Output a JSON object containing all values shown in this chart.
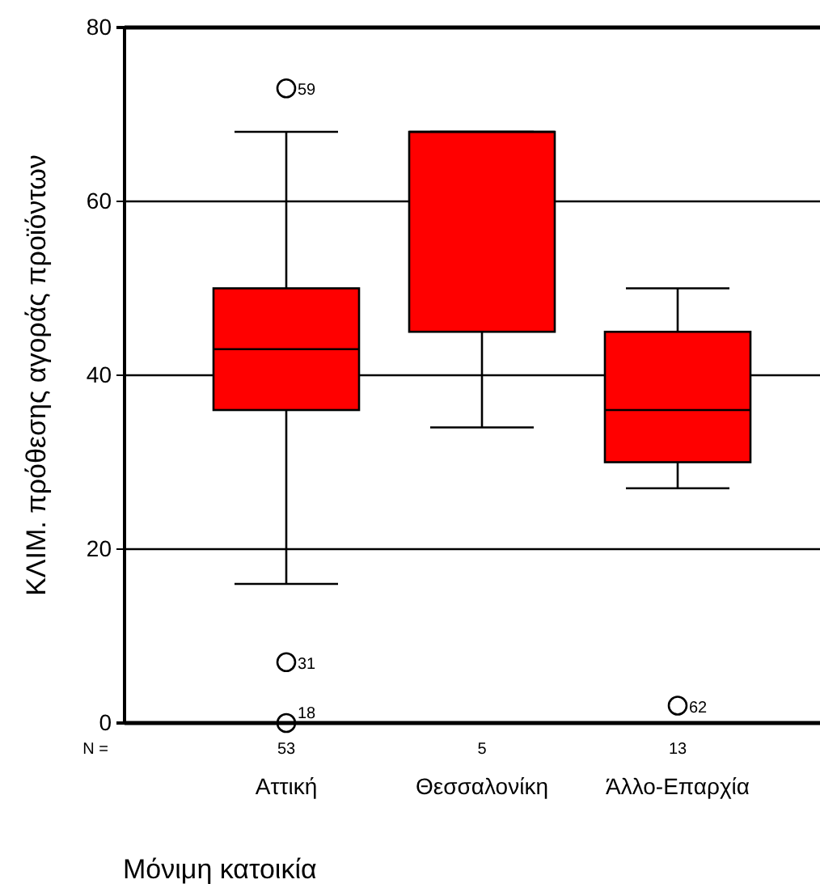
{
  "chart_data": {
    "type": "box",
    "xlabel": "Μόνιμη κατοικία",
    "ylabel": "ΚΛΙΜ. πρόθεσης αγοράς προϊόντων",
    "categories": [
      "Αττική",
      "Θεσσαλονίκη",
      "Άλλο-Επαρχία"
    ],
    "boxes": [
      {
        "low": 16,
        "q1": 36,
        "median": 43,
        "q3": 50,
        "high": 68,
        "outliers": [
          73,
          7,
          0
        ]
      },
      {
        "low": 34,
        "q1": 45,
        "median": 68,
        "q3": 68,
        "high": 68
      },
      {
        "low": 27,
        "q1": 30,
        "median": 36,
        "q3": 45,
        "high": 50,
        "outliers": [
          2
        ]
      }
    ],
    "color": "#ff0000",
    "ylim": [
      0,
      80
    ],
    "yticks": [
      0,
      20,
      40,
      60,
      80
    ],
    "grid": "y",
    "annotations": [
      "N =",
      "53",
      "5",
      "13",
      "59",
      "31",
      "18",
      "62"
    ]
  }
}
